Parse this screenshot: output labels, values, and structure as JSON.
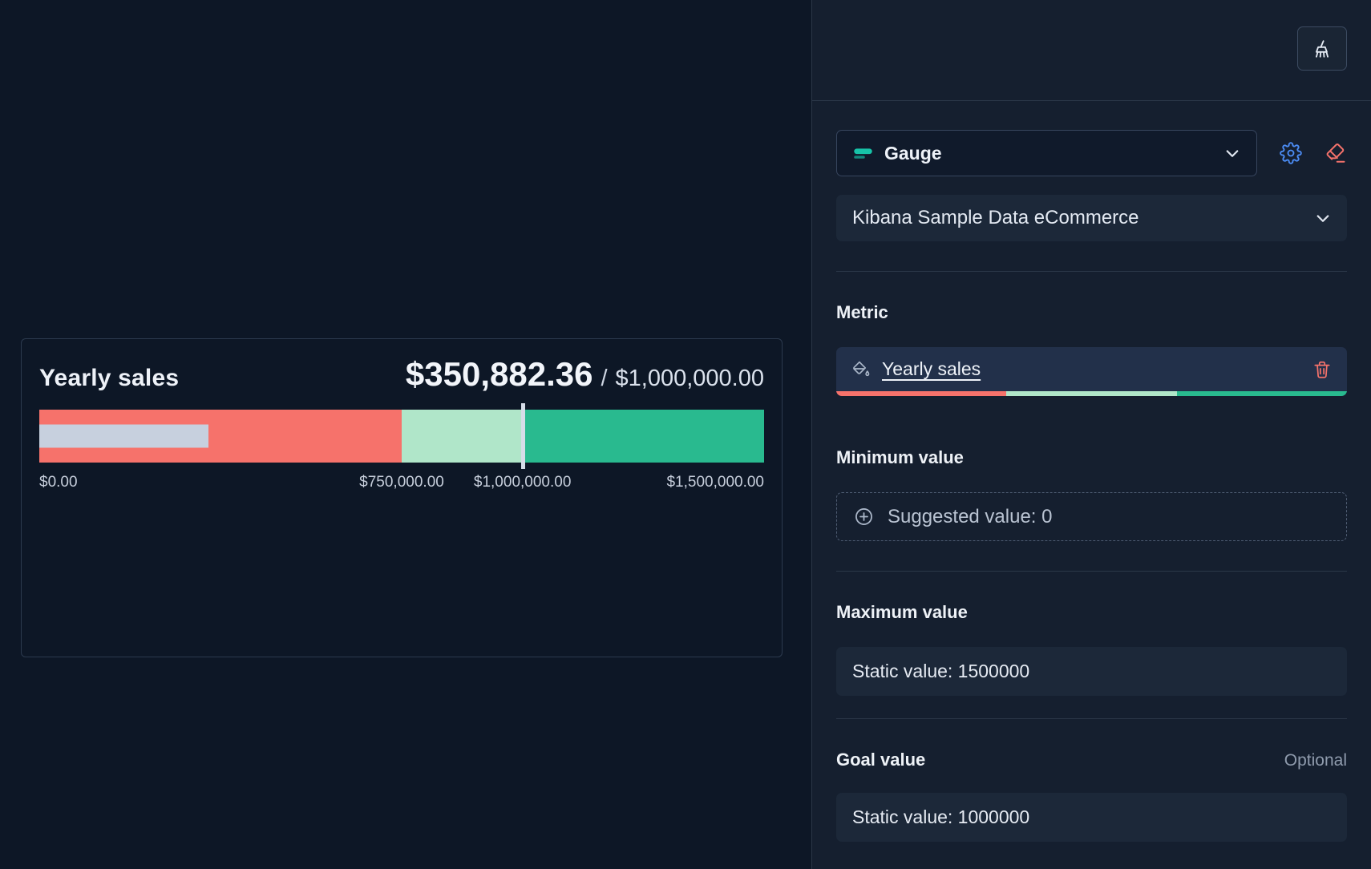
{
  "theme": {
    "canvas_bg": "#0d1726",
    "panel_bg": "#151f2f",
    "border": "#2b3748",
    "text": "#e3e9f2",
    "muted": "#8f9bad",
    "accent_blue": "#4c8df6",
    "danger": "#f4726b",
    "teal": "#17c3a8",
    "value_bar": "#c7d0de"
  },
  "chart": {
    "separator": "/",
    "chart_data": {
      "type": "bullet-gauge",
      "title": "Yearly sales",
      "value": 350882.36,
      "value_label": "$350,882.36",
      "goal": 1000000,
      "goal_label": "$1,000,000.00",
      "min": 0,
      "max": 1500000,
      "bands": [
        {
          "from": 0,
          "to": 750000,
          "color": "#f6726b"
        },
        {
          "from": 750000,
          "to": 1000000,
          "color": "#b0e6c9"
        },
        {
          "from": 1000000,
          "to": 1500000,
          "color": "#29ba8f"
        }
      ],
      "ticks": [
        0,
        750000,
        1000000,
        1500000
      ],
      "tick_labels": [
        "$0.00",
        "$750,000.00",
        "$1,000,000.00",
        "$1,500,000.00"
      ]
    }
  },
  "panel": {
    "chart_type_select": {
      "label": "Gauge"
    },
    "data_view_select": {
      "label": "Kibana Sample Data eCommerce"
    },
    "metric": {
      "heading": "Metric",
      "dimension_label": "Yearly sales",
      "strip_colors": [
        "#f6726b",
        "#b0e6c9",
        "#29ba8f"
      ]
    },
    "minimum": {
      "heading": "Minimum value",
      "button_label": "Suggested value: 0"
    },
    "maximum": {
      "heading": "Maximum value",
      "field_value": "Static value: 1500000"
    },
    "goal": {
      "heading": "Goal value",
      "optional_label": "Optional",
      "field_value": "Static value: 1000000"
    }
  }
}
